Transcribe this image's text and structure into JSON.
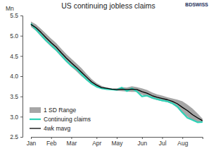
{
  "chart_data": {
    "type": "line",
    "title": "US continuing jobless claims",
    "logo": "BDSWISS",
    "y_label": "Mn",
    "categories": [
      "Jan",
      null,
      null,
      null,
      "Feb",
      null,
      null,
      null,
      "Mar",
      null,
      null,
      null,
      null,
      "Apr",
      null,
      null,
      null,
      "May",
      null,
      null,
      null,
      null,
      "Jun",
      null,
      null,
      null,
      "Jul",
      null,
      null,
      null,
      "Aug",
      null,
      null,
      null,
      null
    ],
    "series": [
      {
        "name": "1 SD Range",
        "type": "band",
        "color": "#a6a6a6",
        "upper": [
          5.35,
          5.28,
          5.17,
          5.05,
          4.93,
          4.82,
          4.68,
          4.55,
          4.43,
          4.32,
          4.2,
          4.06,
          3.93,
          3.83,
          3.76,
          3.72,
          3.7,
          3.7,
          3.73,
          3.72,
          3.75,
          3.73,
          3.7,
          3.66,
          3.6,
          3.55,
          3.52,
          3.48,
          3.45,
          3.42,
          3.38,
          3.3,
          3.2,
          3.08,
          2.95
        ],
        "lower": [
          5.22,
          5.12,
          4.98,
          4.85,
          4.73,
          4.62,
          4.48,
          4.35,
          4.23,
          4.12,
          4.0,
          3.9,
          3.79,
          3.73,
          3.68,
          3.68,
          3.66,
          3.64,
          3.63,
          3.62,
          3.61,
          3.61,
          3.54,
          3.5,
          3.44,
          3.41,
          3.38,
          3.36,
          3.31,
          3.22,
          3.08,
          3.0,
          2.9,
          2.86,
          2.85
        ]
      },
      {
        "name": "Continuing claims",
        "type": "line",
        "color": "#2ed3b7",
        "values": [
          5.3,
          5.15,
          5.02,
          4.88,
          4.77,
          4.65,
          4.52,
          4.38,
          4.26,
          4.18,
          4.05,
          3.92,
          3.82,
          3.74,
          3.7,
          3.68,
          3.67,
          3.66,
          3.72,
          3.63,
          3.7,
          3.62,
          3.5,
          3.52,
          3.47,
          3.43,
          3.4,
          3.38,
          3.33,
          3.25,
          3.1,
          2.97,
          2.92,
          2.86,
          2.87
        ]
      },
      {
        "name": "4wk mavg",
        "type": "line",
        "color": "#000000",
        "values": [
          5.28,
          5.2,
          5.08,
          4.95,
          4.83,
          4.72,
          4.58,
          4.45,
          4.33,
          4.22,
          4.1,
          3.98,
          3.86,
          3.78,
          3.72,
          3.7,
          3.68,
          3.67,
          3.68,
          3.67,
          3.68,
          3.67,
          3.62,
          3.58,
          3.52,
          3.48,
          3.45,
          3.42,
          3.38,
          3.32,
          3.23,
          3.15,
          3.05,
          2.97,
          2.9
        ]
      }
    ],
    "ylim": [
      2.5,
      5.5
    ],
    "yticks": [
      2.5,
      {
        "value": 3,
        "label": "3.0"
      },
      3.5,
      {
        "value": 4,
        "label": "4.0"
      },
      4.5,
      {
        "value": 5,
        "label": "5.0"
      },
      5.5
    ],
    "grid": false,
    "legend": "lower left"
  }
}
